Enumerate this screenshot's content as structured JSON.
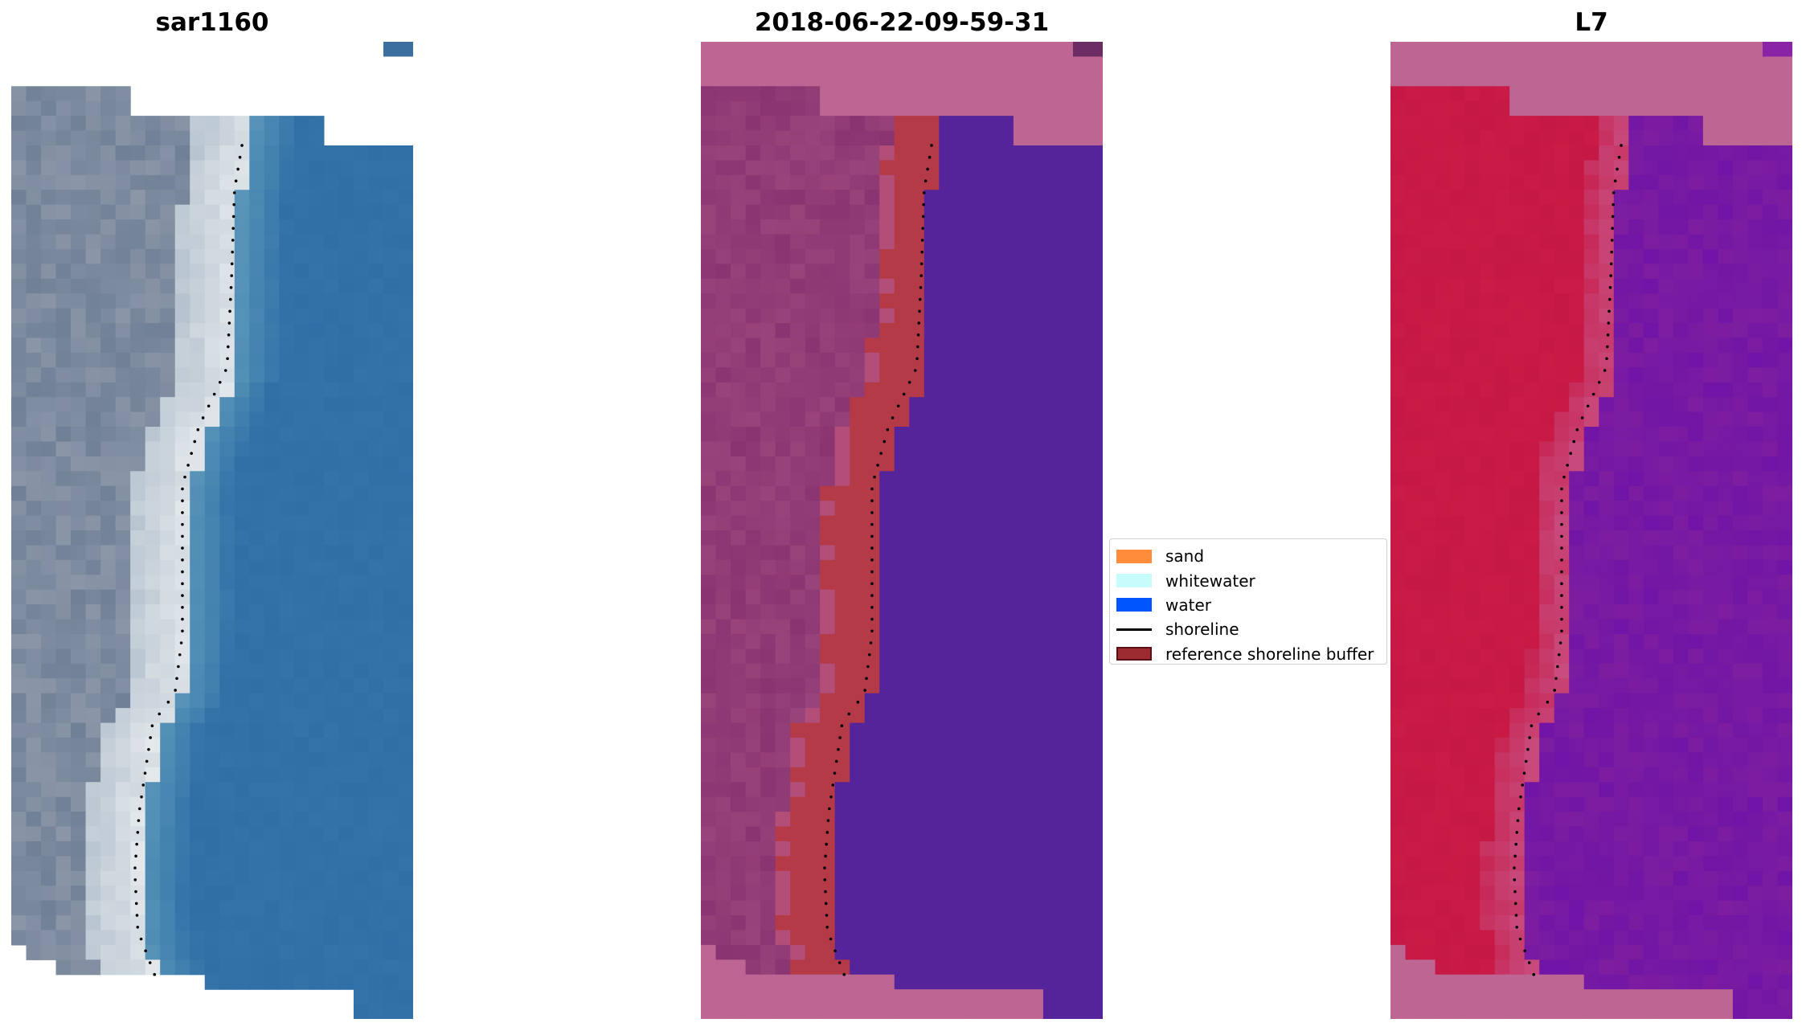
{
  "panels": [
    {
      "title": "sar1160",
      "view": "rgb"
    },
    {
      "title": "2018-06-22-09-59-31",
      "view": "classified"
    },
    {
      "title": "L7",
      "view": "false-color"
    }
  ],
  "legend": {
    "items": [
      {
        "label": "sand",
        "color": "#ff8c3b",
        "kind": "patch"
      },
      {
        "label": "whitewater",
        "color": "#c8fbfb",
        "kind": "patch"
      },
      {
        "label": "water",
        "color": "#0055ff",
        "kind": "patch"
      },
      {
        "label": "shoreline",
        "color": "#000000",
        "kind": "line"
      },
      {
        "label": "reference shoreline buffer",
        "color": "#9b2b31",
        "kind": "patch",
        "edge": "#5a1015"
      }
    ]
  },
  "colors": {
    "nodata": "#bd6694",
    "buffer": "#b43a48",
    "water_class": "#55249a",
    "sea_blue": "#2f6fa6",
    "land_false_color": "#c61845",
    "sea_false_color": "#7d1ea0",
    "shoreline": "#000000"
  }
}
